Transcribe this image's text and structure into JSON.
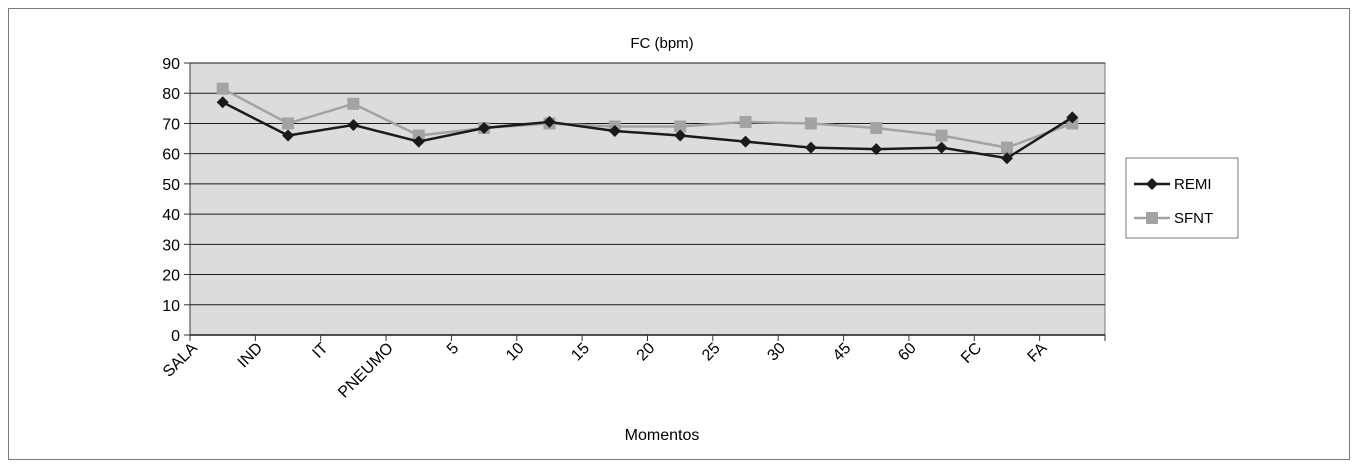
{
  "chart_data": {
    "type": "line",
    "title": "FC (bpm)",
    "xlabel": "Momentos",
    "ylabel": "",
    "ylim": [
      0,
      90
    ],
    "yticks": [
      0,
      10,
      20,
      30,
      40,
      50,
      60,
      70,
      80,
      90
    ],
    "categories": [
      "SALA",
      "IND",
      "IT",
      "PNEUMO",
      "5",
      "10",
      "15",
      "20",
      "25",
      "30",
      "45",
      "60",
      "FC",
      "FA"
    ],
    "series": [
      {
        "name": "REMI",
        "values": [
          77,
          66,
          69.5,
          64,
          68.5,
          70.5,
          67.5,
          66,
          64,
          62,
          61.5,
          62,
          58.5,
          72
        ]
      },
      {
        "name": "SFNT",
        "values": [
          81.5,
          70,
          76.5,
          66,
          68.5,
          70,
          69,
          69,
          70.5,
          70,
          68.5,
          66,
          62,
          70
        ]
      }
    ],
    "grid": true,
    "legend_position": "right",
    "colors": {
      "REMI": "#1a1a1a",
      "SFNT": "#a3a3a3",
      "plot_background": "#dcdcdc",
      "gridline": "#1a1a1a"
    }
  }
}
